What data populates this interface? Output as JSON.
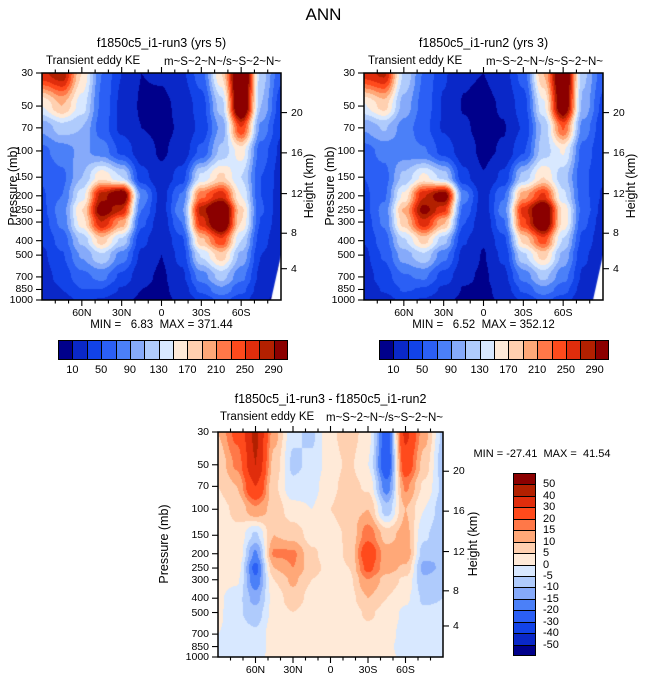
{
  "suptitle": "ANN",
  "background": "#ffffff",
  "axis_color": "#000000",
  "palette": [
    "#00008B",
    "#0A28C8",
    "#1243E8",
    "#2B5FF5",
    "#4B80F8",
    "#86AAFA",
    "#AFCBFC",
    "#D8E8FF",
    "#FFEAD8",
    "#FFD0B0",
    "#FFA878",
    "#FF7848",
    "#FF4A1C",
    "#E02D0C",
    "#B22000",
    "#8B0000"
  ],
  "chart_data": [
    {
      "type": "contour",
      "id": "run3",
      "title": "f1850c5_i1-run3 (yrs 5)",
      "field_label": "Transient eddy KE",
      "units_label": "m~S~2~N~/s~S~2~N~",
      "stats": "MIN =   6.83  MAX = 371.44",
      "min": 6.83,
      "max": 371.44,
      "ylabel_left": "Pressure (mb)",
      "ylabel_right": "Height (km)",
      "y_axis_mb": [
        30,
        50,
        70,
        100,
        150,
        200,
        250,
        300,
        400,
        500,
        700,
        850,
        1000
      ],
      "y_scale": "log",
      "height_axis_km": [
        20,
        16,
        12,
        8,
        4
      ],
      "height_axis_pressures_mb": [
        55.3,
        103,
        193.3,
        356.5,
        616.6
      ],
      "lat_ticks": [
        {
          "label": "60N",
          "deg": 60
        },
        {
          "label": "30N",
          "deg": 30
        },
        {
          "label": "0",
          "deg": 0
        },
        {
          "label": "30S",
          "deg": -30
        },
        {
          "label": "60S",
          "deg": -60
        }
      ],
      "lat_minor_step_deg": 10,
      "x_range_deg": [
        90,
        -90
      ],
      "levels": [
        10,
        30,
        50,
        70,
        90,
        110,
        130,
        150,
        170,
        190,
        210,
        230,
        250,
        270,
        290
      ],
      "colorbar_tick_labels": [
        10,
        50,
        90,
        130,
        170,
        210,
        250,
        290
      ],
      "colorbar_orientation": "horizontal",
      "grid": {
        "lat_deg": [
          90,
          75,
          60,
          45,
          30,
          15,
          0,
          -15,
          -30,
          -45,
          -60,
          -75,
          -90
        ],
        "pressure_mb": [
          30,
          50,
          70,
          100,
          150,
          200,
          250,
          300,
          400,
          500,
          700,
          850,
          1000
        ],
        "values_m2s2": [
          [
            265,
            285,
            170,
            70,
            30,
            10,
            12,
            25,
            60,
            170,
            370,
            120,
            55
          ],
          [
            150,
            190,
            140,
            65,
            25,
            8,
            6,
            14,
            40,
            120,
            355,
            110,
            40
          ],
          [
            95,
            120,
            110,
            60,
            25,
            10,
            6,
            12,
            35,
            95,
            250,
            85,
            32
          ],
          [
            65,
            80,
            95,
            80,
            45,
            18,
            8,
            16,
            55,
            115,
            160,
            60,
            26
          ],
          [
            52,
            65,
            110,
            165,
            130,
            38,
            14,
            40,
            135,
            175,
            130,
            50,
            22
          ],
          [
            48,
            70,
            140,
            280,
            330,
            85,
            22,
            72,
            225,
            265,
            150,
            50,
            20
          ],
          [
            45,
            80,
            170,
            310,
            270,
            70,
            20,
            85,
            280,
            355,
            175,
            52,
            18
          ],
          [
            40,
            75,
            160,
            270,
            205,
            55,
            16,
            70,
            260,
            345,
            170,
            48,
            15
          ],
          [
            32,
            58,
            115,
            180,
            125,
            35,
            12,
            45,
            185,
            245,
            130,
            38,
            12
          ],
          [
            26,
            48,
            92,
            128,
            82,
            26,
            10,
            36,
            132,
            182,
            105,
            30,
            10
          ],
          [
            20,
            38,
            64,
            76,
            45,
            15,
            7,
            25,
            80,
            118,
            76,
            24,
            8
          ],
          [
            15,
            30,
            50,
            50,
            28,
            10,
            6,
            18,
            56,
            86,
            56,
            19,
            6
          ],
          [
            10,
            22,
            34,
            28,
            15,
            7,
            7,
            12,
            35,
            56,
            40,
            13,
            5
          ]
        ]
      }
    },
    {
      "type": "contour",
      "id": "run2",
      "title": "f1850c5_i1-run2 (yrs 3)",
      "field_label": "Transient eddy KE",
      "units_label": "m~S~2~N~/s~S~2~N~",
      "stats": "MIN =   6.52  MAX = 352.12",
      "min": 6.52,
      "max": 352.12,
      "ylabel_left": "Pressure (mb)",
      "ylabel_right": "Height (km)",
      "y_axis_mb": [
        30,
        50,
        70,
        100,
        150,
        200,
        250,
        300,
        400,
        500,
        700,
        850,
        1000
      ],
      "y_scale": "log",
      "height_axis_km": [
        20,
        16,
        12,
        8,
        4
      ],
      "height_axis_pressures_mb": [
        55.3,
        103,
        193.3,
        356.5,
        616.6
      ],
      "lat_ticks": [
        {
          "label": "60N",
          "deg": 60
        },
        {
          "label": "30N",
          "deg": 30
        },
        {
          "label": "0",
          "deg": 0
        },
        {
          "label": "30S",
          "deg": -30
        },
        {
          "label": "60S",
          "deg": -60
        }
      ],
      "lat_minor_step_deg": 10,
      "x_range_deg": [
        90,
        -90
      ],
      "levels": [
        10,
        30,
        50,
        70,
        90,
        110,
        130,
        150,
        170,
        190,
        210,
        230,
        250,
        270,
        290
      ],
      "colorbar_tick_labels": [
        10,
        50,
        90,
        130,
        170,
        210,
        250,
        290
      ],
      "colorbar_orientation": "horizontal",
      "grid": {
        "lat_deg": [
          90,
          75,
          60,
          45,
          30,
          15,
          0,
          -15,
          -30,
          -45,
          -60,
          -75,
          -90
        ],
        "pressure_mb": [
          30,
          50,
          70,
          100,
          150,
          200,
          250,
          300,
          400,
          500,
          700,
          850,
          1000
        ],
        "values_m2s2": [
          [
            260,
            275,
            128,
            68,
            32,
            12,
            10,
            20,
            58,
            190,
            352,
            115,
            58
          ],
          [
            148,
            178,
            102,
            62,
            28,
            9,
            5,
            12,
            40,
            145,
            330,
            105,
            45
          ],
          [
            92,
            112,
            82,
            56,
            28,
            12,
            5,
            9,
            32,
            112,
            232,
            82,
            36
          ],
          [
            62,
            76,
            80,
            72,
            42,
            19,
            6,
            12,
            48,
            120,
            152,
            62,
            34
          ],
          [
            50,
            62,
            115,
            155,
            122,
            36,
            11,
            35,
            118,
            170,
            118,
            54,
            32
          ],
          [
            46,
            66,
            155,
            268,
            315,
            80,
            20,
            68,
            202,
            255,
            135,
            57,
            28
          ],
          [
            43,
            76,
            192,
            300,
            255,
            64,
            17,
            80,
            258,
            343,
            165,
            62,
            24
          ],
          [
            38,
            73,
            180,
            265,
            193,
            51,
            14,
            67,
            245,
            337,
            165,
            55,
            19
          ],
          [
            31,
            60,
            127,
            178,
            117,
            32,
            11,
            43,
            175,
            240,
            128,
            43,
            15
          ],
          [
            25,
            52,
            100,
            126,
            77,
            24,
            9,
            34,
            126,
            179,
            105,
            34,
            12
          ],
          [
            20,
            40,
            68,
            73,
            42,
            14,
            7,
            24,
            77,
            116,
            78,
            27,
            9
          ],
          [
            15,
            32,
            52,
            48,
            26,
            9,
            6,
            17,
            54,
            85,
            58,
            21,
            7
          ],
          [
            10,
            22,
            35,
            28,
            14,
            7,
            7,
            12,
            34,
            55,
            41,
            14,
            6
          ]
        ]
      }
    },
    {
      "type": "contour",
      "id": "diff",
      "title": "f1850c5_i1-run3 - f1850c5_i1-run2",
      "field_label": "Transient eddy KE",
      "units_label": "m~S~2~N~/s~S~2~N~",
      "stats": "MIN = -27.41  MAX =  41.54",
      "min": -27.41,
      "max": 41.54,
      "ylabel_left": "Pressure (mb)",
      "ylabel_right": "Height (km)",
      "y_axis_mb": [
        30,
        50,
        70,
        100,
        150,
        200,
        250,
        300,
        400,
        500,
        700,
        850,
        1000
      ],
      "y_scale": "log",
      "height_axis_km": [
        20,
        16,
        12,
        8,
        4
      ],
      "height_axis_pressures_mb": [
        55.3,
        103,
        193.3,
        356.5,
        616.6
      ],
      "lat_ticks": [
        {
          "label": "60N",
          "deg": 60
        },
        {
          "label": "30N",
          "deg": 30
        },
        {
          "label": "0",
          "deg": 0
        },
        {
          "label": "30S",
          "deg": -30
        },
        {
          "label": "60S",
          "deg": -60
        }
      ],
      "lat_minor_step_deg": 10,
      "x_range_deg": [
        90,
        -90
      ],
      "levels": [
        -50,
        -40,
        -30,
        -20,
        -15,
        -10,
        -5,
        0,
        5,
        10,
        15,
        20,
        30,
        40,
        50
      ],
      "colorbar_tick_labels": [
        50,
        40,
        30,
        20,
        15,
        10,
        5,
        0,
        -5,
        -10,
        -15,
        -20,
        -30,
        -40,
        -50
      ],
      "colorbar_orientation": "vertical",
      "grid": {
        "lat_deg": [
          90,
          75,
          60,
          45,
          30,
          15,
          0,
          -15,
          -30,
          -45,
          -60,
          -75,
          -90
        ],
        "pressure_mb": [
          30,
          50,
          70,
          100,
          150,
          200,
          250,
          300,
          400,
          500,
          700,
          850,
          1000
        ],
        "values_m2s2": [
          [
            10,
            22,
            42,
            12,
            -4,
            -6,
            4,
            8,
            2,
            -24,
            32,
            12,
            -6
          ],
          [
            6,
            16,
            40,
            8,
            -6,
            -4,
            3,
            6,
            0,
            -26,
            26,
            8,
            -8
          ],
          [
            5,
            10,
            30,
            6,
            -4,
            -2,
            4,
            7,
            4,
            -18,
            16,
            4,
            -6
          ],
          [
            3,
            6,
            14,
            8,
            2,
            0,
            5,
            8,
            10,
            -8,
            10,
            0,
            -8
          ],
          [
            2,
            4,
            -6,
            10,
            8,
            3,
            3,
            6,
            18,
            8,
            12,
            -4,
            -10
          ],
          [
            3,
            5,
            -16,
            16,
            16,
            6,
            2,
            6,
            26,
            12,
            14,
            -8,
            -10
          ],
          [
            2,
            3,
            -22,
            10,
            15,
            7,
            3,
            5,
            22,
            12,
            9,
            -12,
            -9
          ],
          [
            2,
            1,
            -19,
            5,
            11,
            5,
            2,
            4,
            15,
            8,
            4,
            -9,
            -6
          ],
          [
            1,
            -3,
            -12,
            2,
            8,
            3,
            1,
            3,
            10,
            5,
            1,
            -6,
            -5
          ],
          [
            1,
            -4,
            -8,
            2,
            5,
            2,
            1,
            2,
            6,
            3,
            -1,
            -4,
            -4
          ],
          [
            0,
            -2,
            -4,
            3,
            3,
            1,
            0,
            1,
            3,
            2,
            -2,
            -3,
            -3
          ],
          [
            0,
            -1,
            -3,
            2,
            2,
            1,
            0,
            1,
            2,
            1,
            -2,
            -2,
            -2
          ],
          [
            0,
            0,
            -1,
            1,
            1,
            0,
            0,
            0,
            1,
            1,
            -1,
            -1,
            -1
          ]
        ]
      }
    }
  ]
}
